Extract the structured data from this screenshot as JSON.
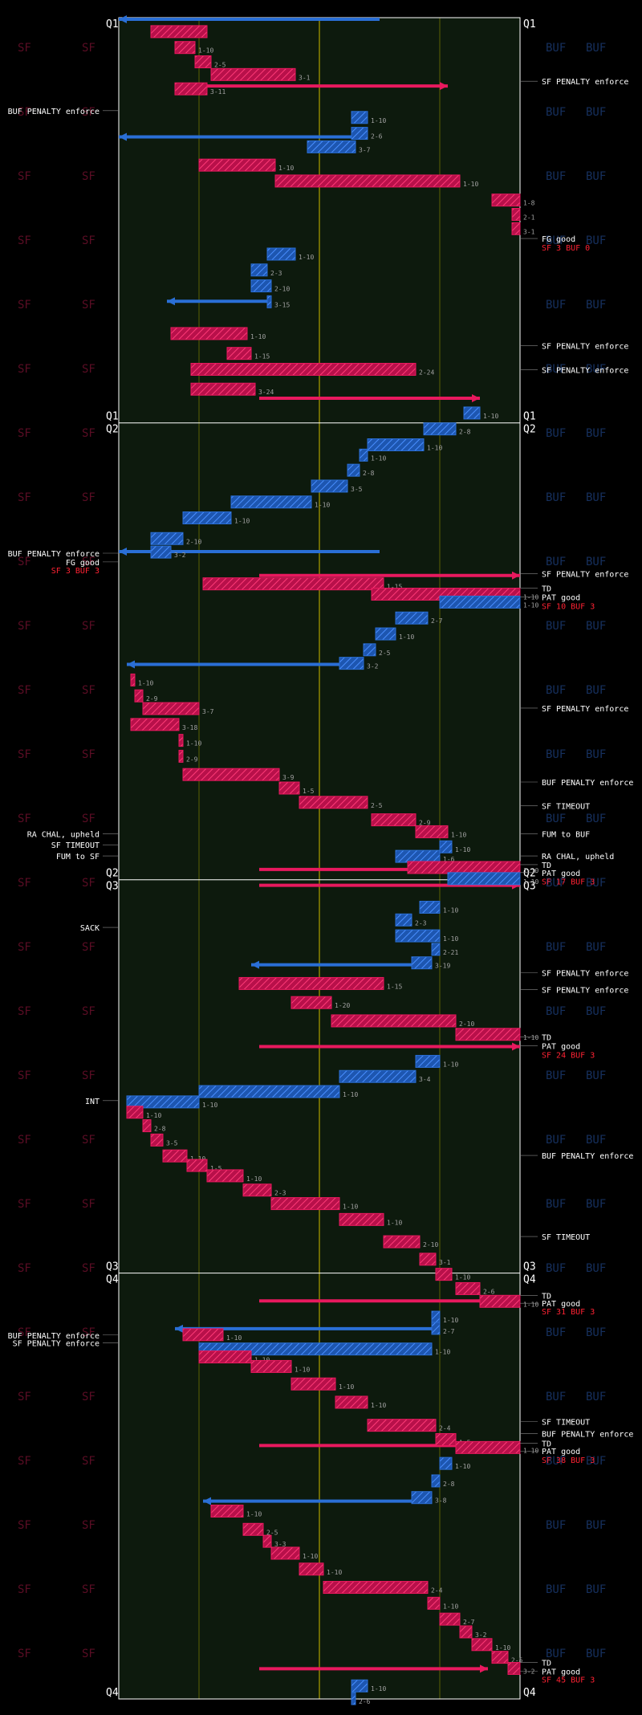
{
  "chart_data": {
    "type": "drive-chart",
    "watermarks": {
      "sf": "SF",
      "buf": "BUF"
    },
    "colors": {
      "sf": "#e8195e",
      "buf": "#2a6fd6",
      "field": "#0d1a0d",
      "score": "#ff2233",
      "yard_lines": "#8a8a00"
    },
    "quarters": [
      {
        "label": "Q1",
        "top": 0,
        "bottom": 510
      },
      {
        "label": "Q2",
        "top": 510,
        "bottom": 1085
      },
      {
        "label": "Q3",
        "top": 1085,
        "bottom": 1580
      },
      {
        "label": "Q4",
        "top": 1580,
        "bottom": 2116
      }
    ],
    "plays": [
      {
        "team": "sf",
        "x1": 22,
        "x2": 8,
        "row": 10,
        "label": ""
      },
      {
        "team": "sf",
        "x1": 14,
        "x2": 19,
        "row": 30,
        "label": "1-10"
      },
      {
        "team": "sf",
        "x1": 19,
        "x2": 23,
        "row": 48,
        "label": "2-5"
      },
      {
        "team": "sf",
        "x1": 23,
        "x2": 44,
        "row": 64,
        "label": "3-1"
      },
      {
        "team": "sf",
        "x1": 14,
        "x2": 22,
        "row": 82,
        "label": "3-11"
      },
      {
        "team": "buf",
        "x1": 58,
        "x2": 62,
        "row": 118,
        "label": "1-10"
      },
      {
        "team": "buf",
        "x1": 58,
        "x2": 62,
        "row": 138,
        "label": "2-6"
      },
      {
        "team": "buf",
        "x1": 47,
        "x2": 59,
        "row": 155,
        "label": "3-7"
      },
      {
        "team": "sf",
        "x1": 20,
        "x2": 39,
        "row": 178,
        "label": "1-10"
      },
      {
        "team": "sf",
        "x1": 39,
        "x2": 85,
        "row": 198,
        "label": "1-10"
      },
      {
        "team": "sf",
        "x1": 93,
        "x2": 100,
        "row": 222,
        "label": "1-8"
      },
      {
        "team": "sf",
        "x1": 98,
        "x2": 100,
        "row": 240,
        "label": "2-1"
      },
      {
        "team": "sf",
        "x1": 98,
        "x2": 100,
        "row": 258,
        "label": "3-1"
      },
      {
        "team": "buf",
        "x1": 37,
        "x2": 44,
        "row": 290,
        "label": "1-10"
      },
      {
        "team": "buf",
        "x1": 33,
        "x2": 37,
        "row": 310,
        "label": "2-3"
      },
      {
        "team": "buf",
        "x1": 33,
        "x2": 38,
        "row": 330,
        "label": "2-10"
      },
      {
        "team": "buf",
        "x1": 37,
        "x2": 38,
        "row": 350,
        "label": "3-15"
      },
      {
        "team": "sf",
        "x1": 13,
        "x2": 32,
        "row": 390,
        "label": "1-10"
      },
      {
        "team": "sf",
        "x1": 27,
        "x2": 33,
        "row": 415,
        "label": "1-15"
      },
      {
        "team": "sf",
        "x1": 18,
        "x2": 74,
        "row": 435,
        "label": "2-24"
      },
      {
        "team": "sf",
        "x1": 18,
        "x2": 34,
        "row": 460,
        "label": "3-24"
      },
      {
        "team": "buf",
        "x1": 86,
        "x2": 90,
        "row": 490,
        "label": "1-10"
      },
      {
        "team": "buf",
        "x1": 76,
        "x2": 84,
        "row": 510,
        "label": "2-8"
      },
      {
        "team": "buf",
        "x1": 62,
        "x2": 76,
        "row": 530,
        "label": "1-10"
      },
      {
        "team": "buf",
        "x1": 60,
        "x2": 62,
        "row": 543,
        "label": "1-10"
      },
      {
        "team": "buf",
        "x1": 57,
        "x2": 60,
        "row": 562,
        "label": "2-8"
      },
      {
        "team": "buf",
        "x1": 48,
        "x2": 57,
        "row": 582,
        "label": "3-5"
      },
      {
        "team": "buf",
        "x1": 28,
        "x2": 48,
        "row": 602,
        "label": "1-10"
      },
      {
        "team": "buf",
        "x1": 16,
        "x2": 28,
        "row": 622,
        "label": "1-10"
      },
      {
        "team": "buf",
        "x1": 8,
        "x2": 16,
        "row": 648,
        "label": "2-10"
      },
      {
        "team": "buf",
        "x1": 8,
        "x2": 13,
        "row": 665,
        "label": "3-2"
      },
      {
        "team": "sf",
        "x1": 21,
        "x2": 66,
        "row": 705,
        "label": "1-15"
      },
      {
        "team": "sf",
        "x1": 63,
        "x2": 100,
        "row": 718,
        "label": "1-10"
      },
      {
        "team": "buf",
        "x1": 80,
        "x2": 100,
        "row": 728,
        "label": "1-10"
      },
      {
        "team": "buf",
        "x1": 69,
        "x2": 77,
        "row": 748,
        "label": "2-7"
      },
      {
        "team": "buf",
        "x1": 64,
        "x2": 69,
        "row": 768,
        "label": "1-10"
      },
      {
        "team": "buf",
        "x1": 61,
        "x2": 64,
        "row": 788,
        "label": "2-5"
      },
      {
        "team": "buf",
        "x1": 55,
        "x2": 61,
        "row": 805,
        "label": "3-2"
      },
      {
        "team": "sf",
        "x1": 3,
        "x2": 4,
        "row": 826,
        "label": "1-10"
      },
      {
        "team": "sf",
        "x1": 4,
        "x2": 6,
        "row": 846,
        "label": "2-9"
      },
      {
        "team": "sf",
        "x1": 6,
        "x2": 20,
        "row": 862,
        "label": "3-7"
      },
      {
        "team": "sf",
        "x1": 3,
        "x2": 15,
        "row": 882,
        "label": "3-18"
      },
      {
        "team": "sf",
        "x1": 15,
        "x2": 16,
        "row": 902,
        "label": "1-10"
      },
      {
        "team": "sf",
        "x1": 15,
        "x2": 16,
        "row": 922,
        "label": "2-9"
      },
      {
        "team": "sf",
        "x1": 16,
        "x2": 40,
        "row": 945,
        "label": "3-9"
      },
      {
        "team": "sf",
        "x1": 40,
        "x2": 45,
        "row": 962,
        "label": "1-5"
      },
      {
        "team": "sf",
        "x1": 45,
        "x2": 62,
        "row": 980,
        "label": "2-5"
      },
      {
        "team": "sf",
        "x1": 63,
        "x2": 74,
        "row": 1002,
        "label": "2-9"
      },
      {
        "team": "sf",
        "x1": 74,
        "x2": 82,
        "row": 1017,
        "label": "1-10"
      },
      {
        "team": "buf",
        "x1": 80,
        "x2": 83,
        "row": 1036,
        "label": "1-10"
      },
      {
        "team": "buf",
        "x1": 69,
        "x2": 80,
        "row": 1048,
        "label": "1-6"
      },
      {
        "team": "sf",
        "x1": 72,
        "x2": 100,
        "row": 1062,
        "label": "1-10"
      },
      {
        "team": "buf",
        "x1": 82,
        "x2": 100,
        "row": 1076,
        "label": "1-10"
      },
      {
        "team": "buf",
        "x1": 75,
        "x2": 80,
        "row": 1112,
        "label": "1-10"
      },
      {
        "team": "buf",
        "x1": 69,
        "x2": 73,
        "row": 1128,
        "label": "2-3"
      },
      {
        "team": "buf",
        "x1": 69,
        "x2": 80,
        "row": 1148,
        "label": "1-10"
      },
      {
        "team": "buf",
        "x1": 78,
        "x2": 80,
        "row": 1165,
        "label": "2-21"
      },
      {
        "team": "buf",
        "x1": 73,
        "x2": 78,
        "row": 1182,
        "label": "3-19"
      },
      {
        "team": "sf",
        "x1": 30,
        "x2": 66,
        "row": 1208,
        "label": "1-15"
      },
      {
        "team": "sf",
        "x1": 43,
        "x2": 53,
        "row": 1232,
        "label": "1-20"
      },
      {
        "team": "sf",
        "x1": 53,
        "x2": 84,
        "row": 1255,
        "label": "2-10"
      },
      {
        "team": "sf",
        "x1": 84,
        "x2": 100,
        "row": 1272,
        "label": "1-10"
      },
      {
        "team": "buf",
        "x1": 74,
        "x2": 80,
        "row": 1306,
        "label": "1-10"
      },
      {
        "team": "buf",
        "x1": 55,
        "x2": 74,
        "row": 1325,
        "label": "3-4"
      },
      {
        "team": "buf",
        "x1": 20,
        "x2": 55,
        "row": 1344,
        "label": "1-10"
      },
      {
        "team": "buf",
        "x1": 2,
        "x2": 20,
        "row": 1357,
        "label": "1-10"
      },
      {
        "team": "sf",
        "x1": 2,
        "x2": 6,
        "row": 1370,
        "label": "1-10"
      },
      {
        "team": "sf",
        "x1": 6,
        "x2": 8,
        "row": 1387,
        "label": "2-8"
      },
      {
        "team": "sf",
        "x1": 8,
        "x2": 11,
        "row": 1405,
        "label": "3-5"
      },
      {
        "team": "sf",
        "x1": 11,
        "x2": 17,
        "row": 1425,
        "label": "1-10"
      },
      {
        "team": "sf",
        "x1": 17,
        "x2": 22,
        "row": 1437,
        "label": "1-5"
      },
      {
        "team": "sf",
        "x1": 22,
        "x2": 31,
        "row": 1450,
        "label": "1-10"
      },
      {
        "team": "sf",
        "x1": 31,
        "x2": 38,
        "row": 1468,
        "label": "2-3"
      },
      {
        "team": "sf",
        "x1": 38,
        "x2": 55,
        "row": 1485,
        "label": "1-10"
      },
      {
        "team": "sf",
        "x1": 55,
        "x2": 66,
        "row": 1505,
        "label": "1-10"
      },
      {
        "team": "sf",
        "x1": 66,
        "x2": 75,
        "row": 1533,
        "label": "2-10"
      },
      {
        "team": "sf",
        "x1": 75,
        "x2": 79,
        "row": 1555,
        "label": "3-1"
      },
      {
        "team": "sf",
        "x1": 79,
        "x2": 83,
        "row": 1574,
        "label": "1-10"
      },
      {
        "team": "sf",
        "x1": 84,
        "x2": 90,
        "row": 1592,
        "label": "2-6"
      },
      {
        "team": "sf",
        "x1": 90,
        "x2": 100,
        "row": 1608,
        "label": "1-10"
      },
      {
        "team": "buf",
        "x1": 78,
        "x2": 80,
        "row": 1628,
        "label": "1-10"
      },
      {
        "team": "buf",
        "x1": 78,
        "x2": 80,
        "row": 1642,
        "label": "2-7"
      },
      {
        "team": "sf",
        "x1": 16,
        "x2": 26,
        "row": 1650,
        "label": "1-10"
      },
      {
        "team": "buf",
        "x1": 20,
        "x2": 78,
        "row": 1668,
        "label": "1-10"
      },
      {
        "team": "sf",
        "x1": 20,
        "x2": 33,
        "row": 1678,
        "label": "1-10"
      },
      {
        "team": "sf",
        "x1": 33,
        "x2": 43,
        "row": 1690,
        "label": "1-10"
      },
      {
        "team": "sf",
        "x1": 43,
        "x2": 54,
        "row": 1712,
        "label": "1-10"
      },
      {
        "team": "sf",
        "x1": 54,
        "x2": 62,
        "row": 1735,
        "label": "1-10"
      },
      {
        "team": "sf",
        "x1": 62,
        "x2": 79,
        "row": 1764,
        "label": "2-4"
      },
      {
        "team": "sf",
        "x1": 79,
        "x2": 84,
        "row": 1782,
        "label": "1-5"
      },
      {
        "team": "sf",
        "x1": 84,
        "x2": 100,
        "row": 1792,
        "label": "1-10"
      },
      {
        "team": "buf",
        "x1": 80,
        "x2": 83,
        "row": 1812,
        "label": "1-10"
      },
      {
        "team": "buf",
        "x1": 78,
        "x2": 80,
        "row": 1834,
        "label": "2-8"
      },
      {
        "team": "buf",
        "x1": 73,
        "x2": 78,
        "row": 1855,
        "label": "3-8"
      },
      {
        "team": "sf",
        "x1": 23,
        "x2": 31,
        "row": 1872,
        "label": "1-10"
      },
      {
        "team": "sf",
        "x1": 31,
        "x2": 36,
        "row": 1895,
        "label": "2-5"
      },
      {
        "team": "sf",
        "x1": 36,
        "x2": 38,
        "row": 1910,
        "label": "3-3"
      },
      {
        "team": "sf",
        "x1": 38,
        "x2": 45,
        "row": 1925,
        "label": "1-10"
      },
      {
        "team": "sf",
        "x1": 45,
        "x2": 51,
        "row": 1945,
        "label": "1-10"
      },
      {
        "team": "sf",
        "x1": 51,
        "x2": 77,
        "row": 1968,
        "label": "2-4"
      },
      {
        "team": "sf",
        "x1": 77,
        "x2": 80,
        "row": 1988,
        "label": "1-10"
      },
      {
        "team": "sf",
        "x1": 80,
        "x2": 85,
        "row": 2008,
        "label": "2-7"
      },
      {
        "team": "sf",
        "x1": 85,
        "x2": 88,
        "row": 2024,
        "label": "3-2"
      },
      {
        "team": "sf",
        "x1": 88,
        "x2": 93,
        "row": 2040,
        "label": "1-10"
      },
      {
        "team": "sf",
        "x1": 93,
        "x2": 97,
        "row": 2056,
        "label": "2-5"
      },
      {
        "team": "sf",
        "x1": 97,
        "x2": 100,
        "row": 2070,
        "label": "3-2"
      },
      {
        "team": "buf",
        "x1": 58,
        "x2": 62,
        "row": 2092,
        "label": "1-10"
      },
      {
        "team": "buf",
        "x1": 58,
        "x2": 59,
        "row": 2108,
        "label": "2-6"
      }
    ],
    "kicks": [
      {
        "team": "buf",
        "x1": 65,
        "x2": 0,
        "row": 0
      },
      {
        "team": "sf",
        "x1": 22,
        "x2": 82,
        "row": 84
      },
      {
        "team": "buf",
        "x1": 59,
        "x2": 0,
        "row": 148
      },
      {
        "team": "sf",
        "x1": 35,
        "x2": 90,
        "row": 477
      },
      {
        "team": "buf",
        "x1": 37,
        "x2": 12,
        "row": 355
      },
      {
        "team": "buf",
        "x1": 65,
        "x2": 0,
        "row": 670
      },
      {
        "team": "sf",
        "x1": 35,
        "x2": 100,
        "row": 700
      },
      {
        "team": "buf",
        "x1": 61,
        "x2": 2,
        "row": 812
      },
      {
        "team": "sf",
        "x1": 35,
        "x2": 100,
        "row": 1070
      },
      {
        "team": "sf",
        "x1": 35,
        "x2": 100,
        "row": 1090
      },
      {
        "team": "buf",
        "x1": 73,
        "x2": 33,
        "row": 1190
      },
      {
        "team": "sf",
        "x1": 35,
        "x2": 100,
        "row": 1293
      },
      {
        "team": "sf",
        "x1": 35,
        "x2": 100,
        "row": 1613
      },
      {
        "team": "buf",
        "x1": 79,
        "x2": 14,
        "row": 1648
      },
      {
        "team": "sf",
        "x1": 35,
        "x2": 100,
        "row": 1795
      },
      {
        "team": "buf",
        "x1": 73,
        "x2": 21,
        "row": 1865
      },
      {
        "team": "sf",
        "x1": 35,
        "x2": 92,
        "row": 2076
      }
    ],
    "notes": [
      {
        "side": "right",
        "y": 80,
        "text": "SF PENALTY enforce"
      },
      {
        "side": "left",
        "y": 117,
        "text": "BUF PENALTY enforce"
      },
      {
        "side": "right",
        "y": 278,
        "text": "FG good"
      },
      {
        "side": "right",
        "y": 413,
        "text": "SF PENALTY enforce"
      },
      {
        "side": "right",
        "y": 443,
        "text": "SF PENALTY enforce"
      },
      {
        "side": "left",
        "y": 674,
        "text": "BUF PENALTY enforce"
      },
      {
        "side": "left",
        "y": 685,
        "text": "FG good"
      },
      {
        "side": "right",
        "y": 700,
        "text": "SF PENALTY enforce"
      },
      {
        "side": "right",
        "y": 718,
        "text": "TD"
      },
      {
        "side": "right",
        "y": 729,
        "text": "PAT good"
      },
      {
        "side": "right",
        "y": 869,
        "text": "SF PENALTY enforce"
      },
      {
        "side": "right",
        "y": 962,
        "text": "BUF PENALTY enforce"
      },
      {
        "side": "right",
        "y": 992,
        "text": "SF TIMEOUT"
      },
      {
        "side": "left",
        "y": 1027,
        "text": "RA CHAL, upheld"
      },
      {
        "side": "right",
        "y": 1027,
        "text": "FUM to BUF"
      },
      {
        "side": "left",
        "y": 1041,
        "text": "SF TIMEOUT"
      },
      {
        "side": "right",
        "y": 1055,
        "text": "RA CHAL, upheld"
      },
      {
        "side": "left",
        "y": 1055,
        "text": "FUM to SF"
      },
      {
        "side": "right",
        "y": 1066,
        "text": "TD"
      },
      {
        "side": "right",
        "y": 1076,
        "text": "PAT good"
      },
      {
        "side": "left",
        "y": 1145,
        "text": "SACK"
      },
      {
        "side": "right",
        "y": 1202,
        "text": "SF PENALTY enforce"
      },
      {
        "side": "right",
        "y": 1223,
        "text": "SF PENALTY enforce"
      },
      {
        "side": "right",
        "y": 1283,
        "text": "TD"
      },
      {
        "side": "right",
        "y": 1294,
        "text": "PAT good"
      },
      {
        "side": "left",
        "y": 1363,
        "text": "INT"
      },
      {
        "side": "right",
        "y": 1432,
        "text": "BUF PENALTY enforce"
      },
      {
        "side": "right",
        "y": 1534,
        "text": "SF TIMEOUT"
      },
      {
        "side": "right",
        "y": 1608,
        "text": "TD"
      },
      {
        "side": "right",
        "y": 1618,
        "text": "PAT good"
      },
      {
        "side": "left",
        "y": 1658,
        "text": "BUF PENALTY enforce"
      },
      {
        "side": "left",
        "y": 1668,
        "text": "SF PENALTY enforce"
      },
      {
        "side": "right",
        "y": 1767,
        "text": "SF TIMEOUT"
      },
      {
        "side": "right",
        "y": 1782,
        "text": "BUF PENALTY enforce"
      },
      {
        "side": "right",
        "y": 1794,
        "text": "TD"
      },
      {
        "side": "right",
        "y": 1804,
        "text": "PAT good"
      },
      {
        "side": "right",
        "y": 2070,
        "text": "TD"
      },
      {
        "side": "right",
        "y": 2081,
        "text": "PAT good"
      }
    ],
    "scores": [
      {
        "y": 289,
        "text": "SF 3 BUF 0",
        "side": "right"
      },
      {
        "y": 695,
        "text": "SF 3 BUF 3",
        "side": "left"
      },
      {
        "y": 740,
        "text": "SF 10 BUF 3",
        "side": "right"
      },
      {
        "y": 1087,
        "text": "SF 17 BUF 3",
        "side": "right"
      },
      {
        "y": 1305,
        "text": "SF 24 BUF 3",
        "side": "right"
      },
      {
        "y": 1628,
        "text": "SF 31 BUF 3",
        "side": "right"
      },
      {
        "y": 1815,
        "text": "SF 38 BUF 3",
        "side": "right"
      },
      {
        "y": 2091,
        "text": "SF 45 BUF 3",
        "side": "right"
      }
    ]
  }
}
